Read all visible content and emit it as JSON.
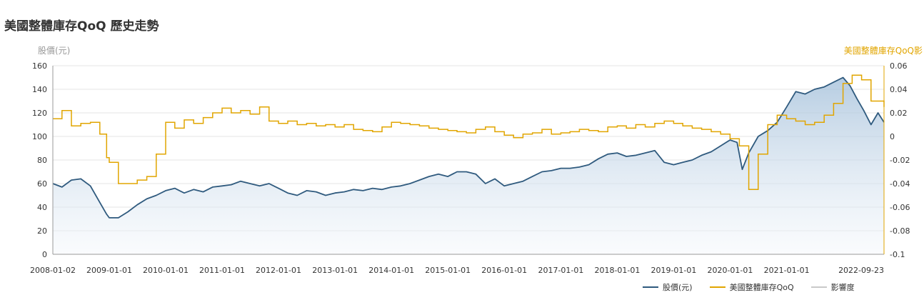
{
  "page_title": "美國整體庫存QoQ 歷史走勢",
  "colors": {
    "stock": "#2f5a7e",
    "inventory": "#e1a500",
    "shadow": "#c9c9c9",
    "grid": "#e6e6e6",
    "area_top": "#9ebcd8",
    "area_bottom": "#f2f6fb"
  },
  "chart_data": {
    "type": "line",
    "title": "美國整體庫存QoQ 歷史走勢",
    "x_ticks": [
      "2008-01-02",
      "2009-01-01",
      "2010-01-01",
      "2011-01-01",
      "2012-01-01",
      "2013-01-01",
      "2014-01-01",
      "2015-01-01",
      "2016-01-01",
      "2017-01-01",
      "2018-01-01",
      "2019-01-01",
      "2020-01-01",
      "2021-01-01",
      "2022-09-23"
    ],
    "x_range": [
      "2008-01-02",
      "2022-09-23"
    ],
    "y_left": {
      "label": "股價(元)",
      "ticks": [
        "0",
        "20",
        "40",
        "60",
        "80",
        "100",
        "120",
        "140",
        "160"
      ],
      "range": [
        0,
        160
      ]
    },
    "y_right": {
      "label": "美國整體庫存QoQ影",
      "ticks": [
        "-0.1",
        "-0.08",
        "-0.06",
        "-0.04",
        "-0.02",
        "0",
        "0.02",
        "0.04",
        "0.06"
      ],
      "range": [
        -0.1,
        0.06
      ]
    },
    "grid": true,
    "legend_position": "bottom-right",
    "series": [
      {
        "name": "股價(元)",
        "axis": "left",
        "style": "line-area",
        "points": [
          [
            "2008-01-02",
            60
          ],
          [
            "2008-03-01",
            57
          ],
          [
            "2008-05-01",
            63
          ],
          [
            "2008-07-01",
            64
          ],
          [
            "2008-09-01",
            58
          ],
          [
            "2008-11-01",
            44
          ],
          [
            "2008-12-15",
            34
          ],
          [
            "2009-01-01",
            31
          ],
          [
            "2009-03-01",
            31
          ],
          [
            "2009-05-01",
            36
          ],
          [
            "2009-07-01",
            42
          ],
          [
            "2009-09-01",
            47
          ],
          [
            "2009-11-01",
            50
          ],
          [
            "2010-01-01",
            54
          ],
          [
            "2010-03-01",
            56
          ],
          [
            "2010-05-01",
            52
          ],
          [
            "2010-07-01",
            55
          ],
          [
            "2010-09-01",
            53
          ],
          [
            "2010-11-01",
            57
          ],
          [
            "2011-01-01",
            58
          ],
          [
            "2011-03-01",
            59
          ],
          [
            "2011-05-01",
            62
          ],
          [
            "2011-07-01",
            60
          ],
          [
            "2011-09-01",
            58
          ],
          [
            "2011-11-01",
            60
          ],
          [
            "2012-01-01",
            56
          ],
          [
            "2012-03-01",
            52
          ],
          [
            "2012-05-01",
            50
          ],
          [
            "2012-07-01",
            54
          ],
          [
            "2012-09-01",
            53
          ],
          [
            "2012-11-01",
            50
          ],
          [
            "2013-01-01",
            52
          ],
          [
            "2013-03-01",
            53
          ],
          [
            "2013-05-01",
            55
          ],
          [
            "2013-07-01",
            54
          ],
          [
            "2013-09-01",
            56
          ],
          [
            "2013-11-01",
            55
          ],
          [
            "2014-01-01",
            57
          ],
          [
            "2014-03-01",
            58
          ],
          [
            "2014-05-01",
            60
          ],
          [
            "2014-07-01",
            63
          ],
          [
            "2014-09-01",
            66
          ],
          [
            "2014-11-01",
            68
          ],
          [
            "2015-01-01",
            66
          ],
          [
            "2015-03-01",
            70
          ],
          [
            "2015-05-01",
            70
          ],
          [
            "2015-07-01",
            68
          ],
          [
            "2015-09-01",
            60
          ],
          [
            "2015-11-01",
            64
          ],
          [
            "2016-01-01",
            58
          ],
          [
            "2016-03-01",
            60
          ],
          [
            "2016-05-01",
            62
          ],
          [
            "2016-07-01",
            66
          ],
          [
            "2016-09-01",
            70
          ],
          [
            "2016-11-01",
            71
          ],
          [
            "2017-01-01",
            73
          ],
          [
            "2017-03-01",
            73
          ],
          [
            "2017-05-01",
            74
          ],
          [
            "2017-07-01",
            76
          ],
          [
            "2017-09-01",
            81
          ],
          [
            "2017-11-01",
            85
          ],
          [
            "2018-01-01",
            86
          ],
          [
            "2018-03-01",
            83
          ],
          [
            "2018-05-01",
            84
          ],
          [
            "2018-07-01",
            86
          ],
          [
            "2018-09-01",
            88
          ],
          [
            "2018-11-01",
            78
          ],
          [
            "2019-01-01",
            76
          ],
          [
            "2019-03-01",
            78
          ],
          [
            "2019-05-01",
            80
          ],
          [
            "2019-07-01",
            84
          ],
          [
            "2019-09-01",
            87
          ],
          [
            "2019-11-01",
            92
          ],
          [
            "2020-01-01",
            97
          ],
          [
            "2020-02-15",
            95
          ],
          [
            "2020-03-20",
            72
          ],
          [
            "2020-05-01",
            86
          ],
          [
            "2020-07-01",
            100
          ],
          [
            "2020-09-01",
            105
          ],
          [
            "2020-11-01",
            112
          ],
          [
            "2021-01-01",
            125
          ],
          [
            "2021-03-01",
            138
          ],
          [
            "2021-05-01",
            136
          ],
          [
            "2021-07-01",
            140
          ],
          [
            "2021-09-01",
            142
          ],
          [
            "2021-11-01",
            146
          ],
          [
            "2022-01-01",
            150
          ],
          [
            "2022-02-15",
            143
          ],
          [
            "2022-04-01",
            132
          ],
          [
            "2022-05-15",
            122
          ],
          [
            "2022-07-01",
            110
          ],
          [
            "2022-08-15",
            120
          ],
          [
            "2022-09-23",
            112
          ]
        ]
      },
      {
        "name": "美國整體庫存QoQ",
        "axis": "right",
        "style": "step",
        "points": [
          [
            "2008-01-02",
            0.015
          ],
          [
            "2008-03-01",
            0.022
          ],
          [
            "2008-05-01",
            0.009
          ],
          [
            "2008-07-01",
            0.011
          ],
          [
            "2008-09-01",
            0.012
          ],
          [
            "2008-11-01",
            0.002
          ],
          [
            "2008-12-15",
            -0.018
          ],
          [
            "2009-01-01",
            -0.022
          ],
          [
            "2009-03-01",
            -0.04
          ],
          [
            "2009-05-01",
            -0.04
          ],
          [
            "2009-07-01",
            -0.037
          ],
          [
            "2009-09-01",
            -0.034
          ],
          [
            "2009-11-01",
            -0.015
          ],
          [
            "2010-01-01",
            0.012
          ],
          [
            "2010-03-01",
            0.007
          ],
          [
            "2010-05-01",
            0.014
          ],
          [
            "2010-07-01",
            0.011
          ],
          [
            "2010-09-01",
            0.016
          ],
          [
            "2010-11-01",
            0.02
          ],
          [
            "2011-01-01",
            0.024
          ],
          [
            "2011-03-01",
            0.02
          ],
          [
            "2011-05-01",
            0.022
          ],
          [
            "2011-07-01",
            0.019
          ],
          [
            "2011-09-01",
            0.025
          ],
          [
            "2011-11-01",
            0.013
          ],
          [
            "2012-01-01",
            0.011
          ],
          [
            "2012-03-01",
            0.013
          ],
          [
            "2012-05-01",
            0.01
          ],
          [
            "2012-07-01",
            0.011
          ],
          [
            "2012-09-01",
            0.009
          ],
          [
            "2012-11-01",
            0.01
          ],
          [
            "2013-01-01",
            0.008
          ],
          [
            "2013-03-01",
            0.01
          ],
          [
            "2013-05-01",
            0.006
          ],
          [
            "2013-07-01",
            0.005
          ],
          [
            "2013-09-01",
            0.004
          ],
          [
            "2013-11-01",
            0.008
          ],
          [
            "2014-01-01",
            0.012
          ],
          [
            "2014-03-01",
            0.011
          ],
          [
            "2014-05-01",
            0.01
          ],
          [
            "2014-07-01",
            0.009
          ],
          [
            "2014-09-01",
            0.007
          ],
          [
            "2014-11-01",
            0.006
          ],
          [
            "2015-01-01",
            0.005
          ],
          [
            "2015-03-01",
            0.004
          ],
          [
            "2015-05-01",
            0.003
          ],
          [
            "2015-07-01",
            0.006
          ],
          [
            "2015-09-01",
            0.008
          ],
          [
            "2015-11-01",
            0.004
          ],
          [
            "2016-01-01",
            0.001
          ],
          [
            "2016-03-01",
            -0.001
          ],
          [
            "2016-05-01",
            0.002
          ],
          [
            "2016-07-01",
            0.003
          ],
          [
            "2016-09-01",
            0.006
          ],
          [
            "2016-11-01",
            0.002
          ],
          [
            "2017-01-01",
            0.003
          ],
          [
            "2017-03-01",
            0.004
          ],
          [
            "2017-05-01",
            0.006
          ],
          [
            "2017-07-01",
            0.005
          ],
          [
            "2017-09-01",
            0.004
          ],
          [
            "2017-11-01",
            0.008
          ],
          [
            "2018-01-01",
            0.009
          ],
          [
            "2018-03-01",
            0.007
          ],
          [
            "2018-05-01",
            0.01
          ],
          [
            "2018-07-01",
            0.008
          ],
          [
            "2018-09-01",
            0.011
          ],
          [
            "2018-11-01",
            0.013
          ],
          [
            "2019-01-01",
            0.011
          ],
          [
            "2019-03-01",
            0.009
          ],
          [
            "2019-05-01",
            0.007
          ],
          [
            "2019-07-01",
            0.006
          ],
          [
            "2019-09-01",
            0.004
          ],
          [
            "2019-11-01",
            0.002
          ],
          [
            "2020-01-01",
            -0.002
          ],
          [
            "2020-03-01",
            -0.008
          ],
          [
            "2020-05-01",
            -0.045
          ],
          [
            "2020-07-01",
            -0.015
          ],
          [
            "2020-09-01",
            0.01
          ],
          [
            "2020-11-01",
            0.018
          ],
          [
            "2021-01-01",
            0.015
          ],
          [
            "2021-03-01",
            0.013
          ],
          [
            "2021-05-01",
            0.01
          ],
          [
            "2021-07-01",
            0.012
          ],
          [
            "2021-09-01",
            0.018
          ],
          [
            "2021-11-01",
            0.028
          ],
          [
            "2022-01-01",
            0.045
          ],
          [
            "2022-03-01",
            0.052
          ],
          [
            "2022-05-01",
            0.048
          ],
          [
            "2022-07-01",
            0.03
          ],
          [
            "2022-09-23",
            0.025
          ]
        ]
      }
    ]
  },
  "legend": [
    {
      "label": "股價(元)",
      "color": "#2f5a7e"
    },
    {
      "label": "美國整體庫存QoQ",
      "color": "#e1a500"
    },
    {
      "label": "影響度",
      "color": "#c9c9c9"
    }
  ]
}
